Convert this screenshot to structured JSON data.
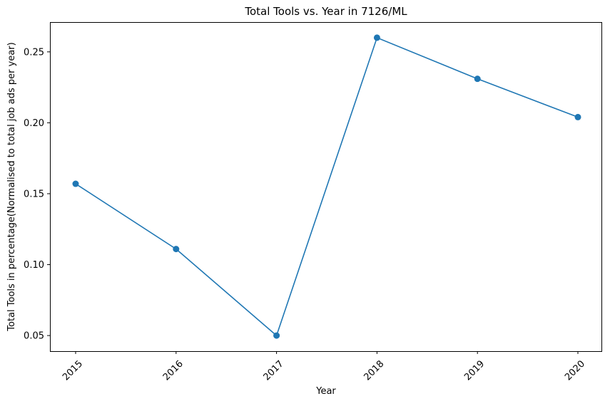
{
  "chart_data": {
    "type": "line",
    "title": "Total Tools vs. Year in 7126/ML",
    "xlabel": "Year",
    "ylabel": "Total Tools in percentage(Normalised to total job ads per year)",
    "x": [
      "2015",
      "2016",
      "2017",
      "2018",
      "2019",
      "2020"
    ],
    "series": [
      {
        "values": [
          0.157,
          0.111,
          0.05,
          0.26,
          0.231,
          0.204
        ],
        "color": "#1f77b4",
        "marker": "circle"
      }
    ],
    "ylim": [
      0.039,
      0.271
    ],
    "yticks": [
      "0.05",
      "0.10",
      "0.15",
      "0.20",
      "0.25"
    ],
    "ytick_values": [
      0.05,
      0.1,
      0.15,
      0.2,
      0.25
    ],
    "xtick_rotation": 45,
    "grid": false,
    "legend": "none"
  }
}
